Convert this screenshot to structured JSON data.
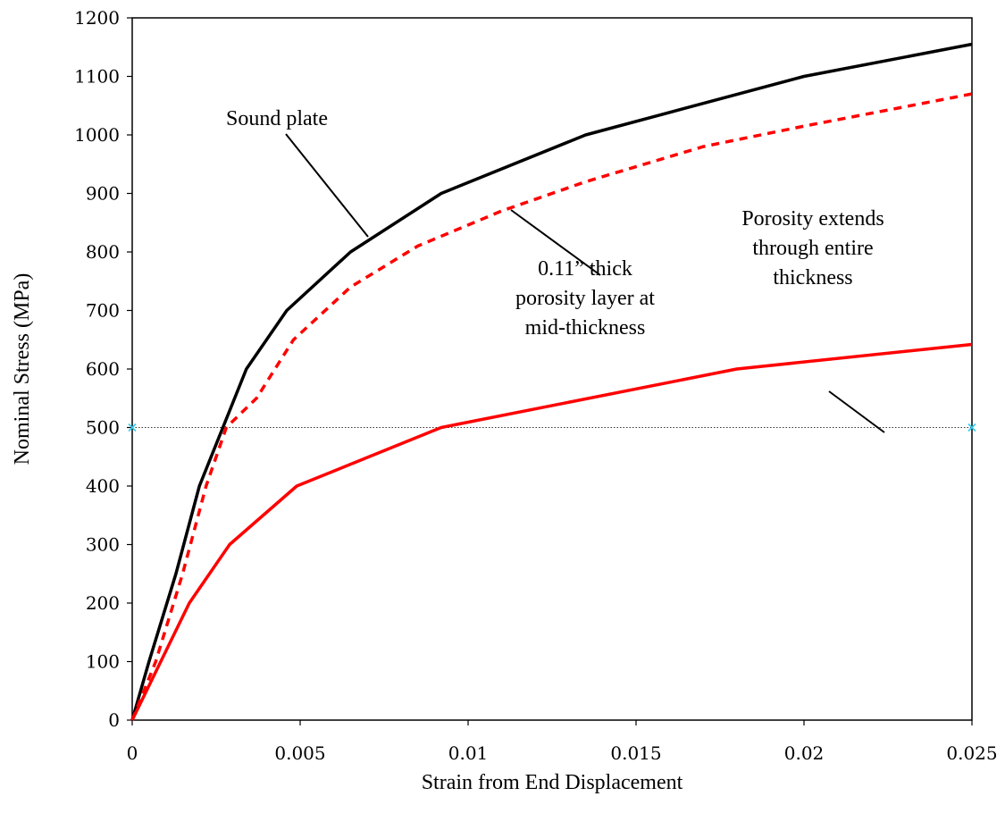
{
  "chart_data": {
    "type": "line",
    "xlabel": "Strain from End Displacement",
    "ylabel": "Nominal Stress (MPa)",
    "xlim": [
      0,
      0.025
    ],
    "ylim": [
      0,
      1200
    ],
    "x_ticks": [
      "0",
      "0.005",
      "0.01",
      "0.015",
      "0.02",
      "0.025"
    ],
    "y_ticks": [
      "0",
      "100",
      "200",
      "300",
      "400",
      "500",
      "600",
      "700",
      "800",
      "900",
      "1000",
      "1100",
      "1200"
    ],
    "grid": false,
    "reference_line": {
      "y": 500,
      "style": "dotted",
      "marker_color": "#33ccee"
    },
    "series": [
      {
        "color": "#000000",
        "style": "solid",
        "x": [
          0,
          0.0005,
          0.0013,
          0.002,
          0.0027,
          0.0034,
          0.0046,
          0.0065,
          0.0092,
          0.0135,
          0.02,
          0.025
        ],
        "y": [
          0,
          100,
          250,
          400,
          500,
          600,
          700,
          800,
          900,
          1000,
          1100,
          1155
        ]
      },
      {
        "color": "#ff0000",
        "style": "dashed",
        "x": [
          0,
          0.0007,
          0.0015,
          0.0022,
          0.0028,
          0.0037,
          0.0048,
          0.0065,
          0.0085,
          0.011,
          0.0135,
          0.017,
          0.02,
          0.025
        ],
        "y": [
          0,
          100,
          250,
          400,
          500,
          550,
          650,
          740,
          810,
          870,
          920,
          980,
          1015,
          1070
        ]
      },
      {
        "color": "#ff0000",
        "style": "solid",
        "x": [
          0,
          0.0017,
          0.0029,
          0.0049,
          0.0092,
          0.018,
          0.025
        ],
        "y": [
          0,
          200,
          300,
          400,
          500,
          600,
          642
        ]
      }
    ],
    "annotations": [
      {
        "lines": [
          "Sound plate"
        ]
      },
      {
        "lines": [
          "0.11” thick",
          "porosity layer at",
          "mid-thickness"
        ]
      },
      {
        "lines": [
          "Porosity extends",
          "through entire",
          "thickness"
        ]
      }
    ]
  }
}
